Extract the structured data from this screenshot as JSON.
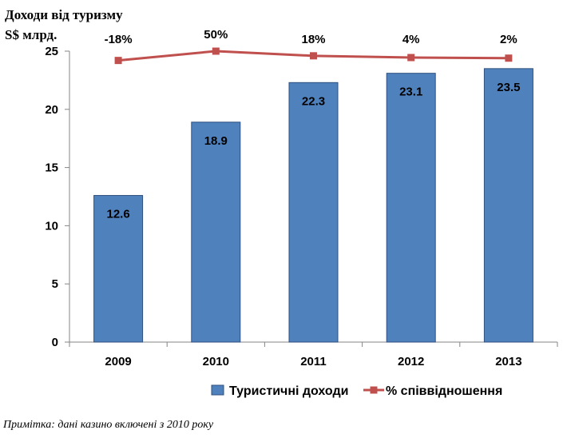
{
  "chart_data": {
    "type": "bar",
    "ylabel": "Доходи від туризму S$ млрд.",
    "ylabel_lines": [
      "Доходи від туризму",
      "S$ млрд."
    ],
    "categories": [
      "2009",
      "2010",
      "2011",
      "2012",
      "2013"
    ],
    "series": [
      {
        "name": "Туристичні доходи",
        "kind": "bar",
        "color": "#4F81BD",
        "values": [
          12.6,
          18.9,
          22.3,
          23.1,
          23.5
        ],
        "labels": [
          "12.6",
          "18.9",
          "22.3",
          "23.1",
          "23.5"
        ]
      },
      {
        "name": "% співвідношення",
        "kind": "line",
        "color": "#C0504D",
        "marker": "square",
        "values_on_left_axis": [
          24.2,
          25.0,
          24.6,
          24.45,
          24.4
        ],
        "labels": [
          "-18%",
          "50%",
          "18%",
          "4%",
          "2%"
        ]
      }
    ],
    "ylim": [
      0,
      25
    ],
    "yticks": [
      "0",
      "5",
      "10",
      "15",
      "20",
      "25"
    ],
    "grid": false,
    "legend_position": "bottom-right"
  },
  "note": "Примітка: дані казино включені з 2010 року"
}
